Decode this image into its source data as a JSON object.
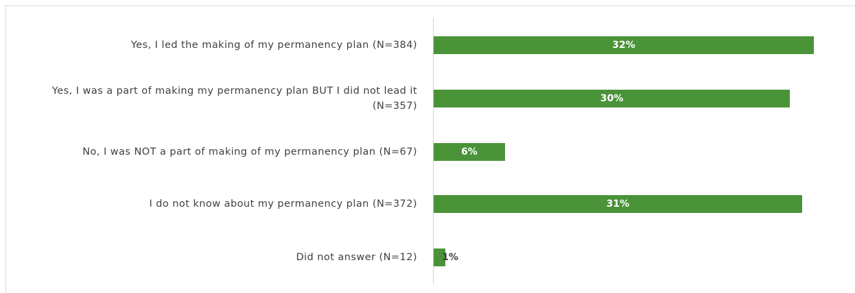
{
  "chart_data": {
    "type": "bar",
    "orientation": "horizontal",
    "categories": [
      "Yes, I led the making of my permanency plan (N=384)",
      "Yes, I was a part of making my permanency plan BUT I did not lead it (N=357)",
      "No, I was NOT a part of making of my permanency plan (N=67)",
      "I do not know about my permanency plan (N=372)",
      "Did not answer (N=12)"
    ],
    "values": [
      32,
      30,
      6,
      31,
      1
    ],
    "value_labels": [
      "32%",
      "30%",
      "6%",
      "31%",
      "1%"
    ],
    "color": "#4a9338"
  }
}
